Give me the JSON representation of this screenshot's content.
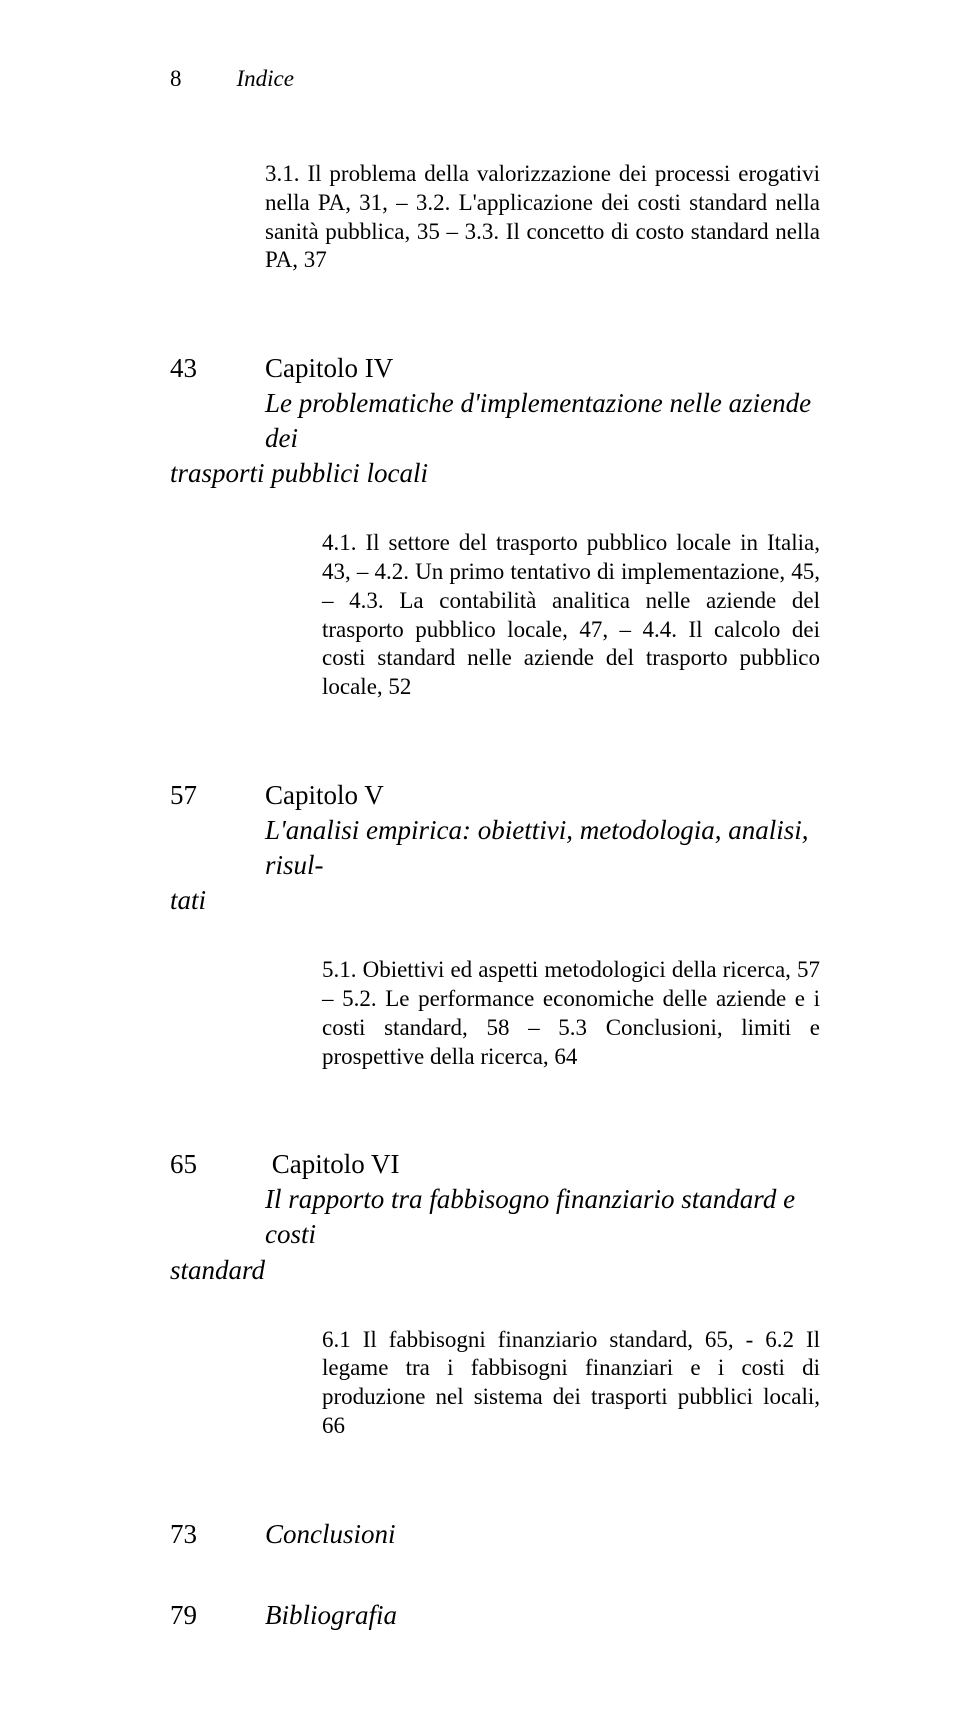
{
  "page": {
    "header_number": "8",
    "header_title": "Indice"
  },
  "sec3": {
    "text": "3.1. Il problema della valorizzazione dei processi erogativi nella PA, 31, – 3.2. L'applicazione dei costi standard nella sanità pubblica, 35 – 3.3. Il concetto di costo standard nella PA, 37"
  },
  "ch4": {
    "num": "43",
    "label": "Capitolo IV",
    "subtitle_line1": "Le problematiche d'implementazione nelle aziende dei",
    "subtitle_hang": "trasporti pubblici locali",
    "body": "4.1. Il settore del trasporto pubblico locale in Italia, 43, – 4.2. Un primo tentativo di implementazione, 45, – 4.3. La contabilità analitica nelle aziende del trasporto pubblico locale, 47, – 4.4. Il calcolo dei costi standard nelle aziende del trasporto pubblico locale, 52"
  },
  "ch5": {
    "num": "57",
    "label": "Capitolo V",
    "subtitle_line1": "L'analisi empirica: obiettivi, metodologia, analisi, risul-",
    "subtitle_hang": "tati",
    "body": "5.1. Obiettivi ed aspetti metodologici della ricerca, 57 – 5.2. Le performance economiche delle aziende e i costi standard, 58 – 5.3 Conclusioni, limiti e prospettive della ricerca, 64"
  },
  "ch6": {
    "num": "65",
    "label": "Capitolo VI",
    "subtitle_line1": "Il rapporto tra fabbisogno finanziario standard e costi",
    "subtitle_hang": "standard",
    "body": "6.1 Il fabbisogni finanziario standard, 65, - 6.2 Il legame tra i fabbisogni finanziari e i costi di produzione nel sistema dei trasporti pubblici locali, 66"
  },
  "ch7": {
    "num": "73",
    "label": "Conclusioni"
  },
  "ch8": {
    "num": "79",
    "label": "Bibliografia"
  }
}
